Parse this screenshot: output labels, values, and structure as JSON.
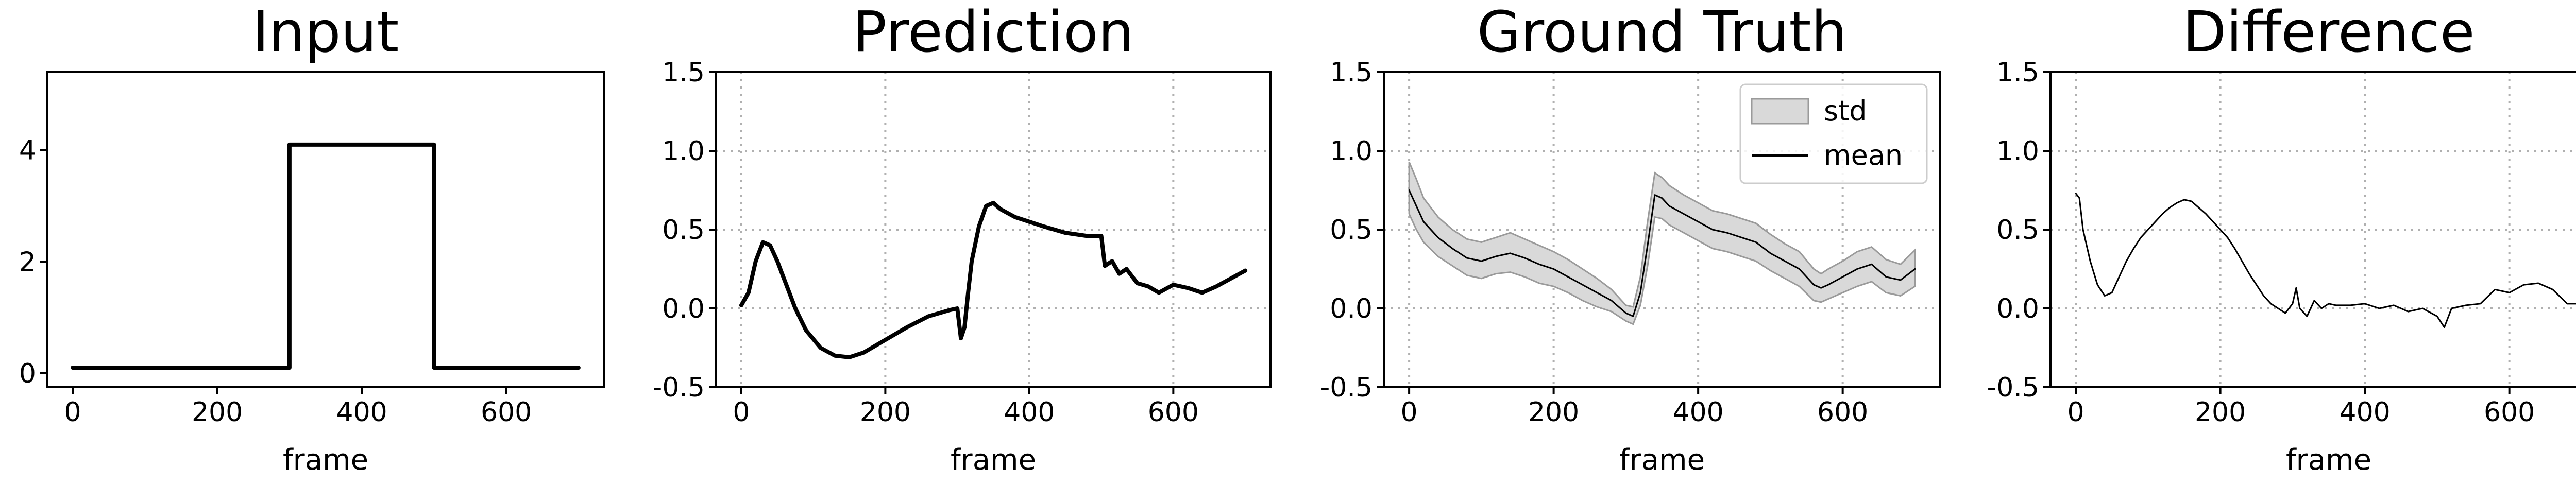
{
  "chart_data": [
    {
      "type": "line",
      "title": "Input",
      "xlabel": "frame",
      "ylabel": "",
      "xlim": [
        -35,
        735
      ],
      "ylim": [
        -0.25,
        5.4
      ],
      "xticks": [
        0,
        200,
        400,
        600
      ],
      "yticks": [
        0,
        2,
        4
      ],
      "grid": false,
      "series": [
        {
          "x": [
            0,
            300,
            300,
            500,
            500,
            700
          ],
          "y": [
            0.1,
            0.1,
            4.1,
            4.1,
            0.1,
            0.1
          ]
        }
      ]
    },
    {
      "type": "line",
      "title": "Prediction",
      "xlabel": "frame",
      "ylabel": "",
      "xlim": [
        -35,
        735
      ],
      "ylim": [
        -0.5,
        1.5
      ],
      "xticks": [
        0,
        200,
        400,
        600
      ],
      "yticks": [
        -0.5,
        0.0,
        0.5,
        1.0,
        1.5
      ],
      "grid": true,
      "series": [
        {
          "x": [
            0,
            10,
            20,
            30,
            40,
            50,
            60,
            75,
            90,
            110,
            130,
            150,
            170,
            200,
            230,
            260,
            290,
            300,
            305,
            310,
            315,
            320,
            330,
            340,
            350,
            360,
            380,
            400,
            420,
            450,
            480,
            500,
            505,
            515,
            525,
            535,
            550,
            565,
            580,
            600,
            620,
            640,
            660,
            680,
            700
          ],
          "y": [
            0.02,
            0.1,
            0.3,
            0.42,
            0.4,
            0.3,
            0.18,
            0.0,
            -0.14,
            -0.25,
            -0.3,
            -0.31,
            -0.28,
            -0.2,
            -0.12,
            -0.05,
            -0.01,
            0.0,
            -0.19,
            -0.12,
            0.1,
            0.3,
            0.52,
            0.65,
            0.67,
            0.63,
            0.58,
            0.55,
            0.52,
            0.48,
            0.46,
            0.46,
            0.27,
            0.3,
            0.22,
            0.25,
            0.16,
            0.14,
            0.1,
            0.15,
            0.13,
            0.1,
            0.14,
            0.19,
            0.24
          ]
        }
      ]
    },
    {
      "type": "line",
      "title": "Ground Truth",
      "xlabel": "frame",
      "ylabel": "",
      "xlim": [
        -35,
        735
      ],
      "ylim": [
        -0.5,
        1.5
      ],
      "xticks": [
        0,
        200,
        400,
        600
      ],
      "yticks": [
        -0.5,
        0.0,
        0.5,
        1.0,
        1.5
      ],
      "grid": true,
      "legend": {
        "position": "top-right",
        "std_label": "std",
        "mean_label": "mean"
      },
      "series": [
        {
          "name": "mean",
          "x": [
            0,
            10,
            20,
            40,
            60,
            80,
            100,
            120,
            140,
            160,
            180,
            200,
            220,
            240,
            260,
            280,
            300,
            310,
            320,
            330,
            340,
            350,
            360,
            380,
            400,
            420,
            440,
            460,
            480,
            500,
            520,
            540,
            560,
            570,
            580,
            600,
            620,
            640,
            660,
            680,
            700
          ],
          "y": [
            0.75,
            0.65,
            0.55,
            0.45,
            0.38,
            0.32,
            0.3,
            0.33,
            0.35,
            0.32,
            0.28,
            0.25,
            0.2,
            0.15,
            0.1,
            0.05,
            -0.03,
            -0.05,
            0.1,
            0.4,
            0.72,
            0.7,
            0.65,
            0.6,
            0.55,
            0.5,
            0.48,
            0.45,
            0.42,
            0.35,
            0.3,
            0.25,
            0.15,
            0.13,
            0.15,
            0.2,
            0.25,
            0.28,
            0.2,
            0.18,
            0.25
          ]
        },
        {
          "name": "std",
          "x": [
            0,
            10,
            20,
            40,
            60,
            80,
            100,
            120,
            140,
            160,
            180,
            200,
            220,
            240,
            260,
            280,
            300,
            310,
            320,
            330,
            340,
            350,
            360,
            380,
            400,
            420,
            440,
            460,
            480,
            500,
            520,
            540,
            560,
            570,
            580,
            600,
            620,
            640,
            660,
            680,
            700
          ],
          "upper": [
            0.93,
            0.82,
            0.7,
            0.58,
            0.5,
            0.44,
            0.42,
            0.45,
            0.48,
            0.44,
            0.4,
            0.36,
            0.31,
            0.25,
            0.19,
            0.12,
            0.02,
            0.01,
            0.2,
            0.55,
            0.86,
            0.83,
            0.78,
            0.72,
            0.67,
            0.62,
            0.6,
            0.57,
            0.54,
            0.47,
            0.41,
            0.36,
            0.25,
            0.22,
            0.25,
            0.3,
            0.36,
            0.39,
            0.31,
            0.28,
            0.37
          ],
          "lower": [
            0.6,
            0.5,
            0.42,
            0.33,
            0.27,
            0.21,
            0.19,
            0.22,
            0.23,
            0.2,
            0.16,
            0.14,
            0.1,
            0.05,
            0.01,
            -0.02,
            -0.08,
            -0.1,
            0.02,
            0.27,
            0.58,
            0.57,
            0.53,
            0.48,
            0.43,
            0.38,
            0.36,
            0.33,
            0.3,
            0.24,
            0.19,
            0.14,
            0.05,
            0.04,
            0.06,
            0.1,
            0.14,
            0.17,
            0.1,
            0.08,
            0.14
          ]
        }
      ]
    },
    {
      "type": "line",
      "title": "Difference",
      "xlabel": "frame",
      "ylabel": "",
      "xlim": [
        -35,
        735
      ],
      "ylim": [
        -0.5,
        1.5
      ],
      "xticks": [
        0,
        200,
        400,
        600
      ],
      "yticks": [
        -0.5,
        0.0,
        0.5,
        1.0,
        1.5
      ],
      "grid": true,
      "series": [
        {
          "x": [
            0,
            5,
            10,
            20,
            30,
            40,
            50,
            60,
            70,
            80,
            90,
            100,
            110,
            120,
            130,
            140,
            150,
            160,
            170,
            180,
            190,
            200,
            210,
            220,
            230,
            240,
            250,
            260,
            270,
            280,
            290,
            300,
            305,
            310,
            320,
            330,
            340,
            350,
            360,
            380,
            400,
            420,
            440,
            460,
            480,
            500,
            510,
            520,
            540,
            560,
            580,
            600,
            620,
            640,
            660,
            680,
            700
          ],
          "y": [
            0.73,
            0.7,
            0.5,
            0.3,
            0.15,
            0.08,
            0.1,
            0.2,
            0.3,
            0.38,
            0.45,
            0.5,
            0.55,
            0.6,
            0.64,
            0.67,
            0.69,
            0.68,
            0.64,
            0.6,
            0.55,
            0.5,
            0.45,
            0.38,
            0.3,
            0.22,
            0.15,
            0.08,
            0.03,
            0.0,
            -0.03,
            0.03,
            0.13,
            0.0,
            -0.05,
            0.05,
            0.0,
            0.03,
            0.02,
            0.02,
            0.03,
            0.0,
            0.02,
            -0.02,
            0.0,
            -0.05,
            -0.12,
            0.0,
            0.02,
            0.03,
            0.12,
            0.1,
            0.15,
            0.16,
            0.12,
            0.03,
            0.03
          ]
        }
      ]
    }
  ]
}
